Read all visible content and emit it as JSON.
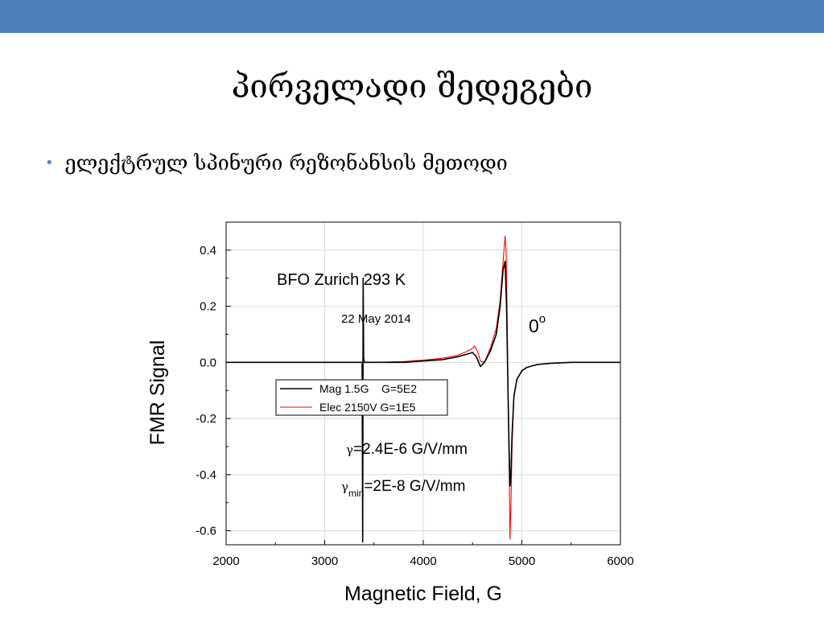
{
  "slide": {
    "title": "პირველადი შედეგები",
    "bullet": "ელექტრულ სპინური რეზონანსის მეთოდი"
  },
  "colors": {
    "accent": "#4f81bd",
    "series_mag": "#000000",
    "series_elec": "#ff0000"
  },
  "chart_data": {
    "type": "line",
    "xlabel": "Magnetic Field, G",
    "ylabel": "FMR Signal",
    "xlim": [
      2000,
      6000
    ],
    "ylim": [
      -0.65,
      0.5
    ],
    "xticks": [
      2000,
      3000,
      4000,
      5000,
      6000
    ],
    "yticks": [
      0.4,
      0.2,
      0.0,
      -0.2,
      -0.4,
      -0.6
    ],
    "xtick_labels": [
      "2000",
      "3000",
      "4000",
      "5000",
      "6000"
    ],
    "ytick_labels": [
      "0.4",
      "0.2",
      "0.0",
      "-0.2",
      "-0.4",
      "-0.6"
    ],
    "grid": true,
    "legend_position": "center",
    "annotations": {
      "sample": "BFO Zurich 293 K",
      "date": "22 May 2014",
      "angle": "0",
      "angle_sup": "o",
      "gamma_sym": "γ",
      "gamma_text": "=2.4E-6 G/V/mm",
      "gamma_min_sym": "γ",
      "gamma_min_sub": "min",
      "gamma_min_text": "=2E-8 G/V/mm"
    },
    "series": [
      {
        "name": "Mag 1.5G    G=5E2",
        "color": "#000000",
        "x": [
          2000,
          2500,
          3000,
          3380,
          3385,
          3390,
          3395,
          3400,
          3500,
          3800,
          4000,
          4200,
          4350,
          4450,
          4500,
          4540,
          4580,
          4620,
          4680,
          4740,
          4780,
          4810,
          4830,
          4845,
          4860,
          4870,
          4880,
          4890,
          4900,
          4920,
          4950,
          5000,
          5050,
          5150,
          5300,
          5500,
          5800,
          6000
        ],
        "y": [
          0.0,
          0.0,
          0.0,
          0.0,
          -0.64,
          0.3,
          0.02,
          0.0,
          0.0,
          0.0,
          0.005,
          0.01,
          0.02,
          0.03,
          0.035,
          0.02,
          -0.015,
          0.0,
          0.04,
          0.1,
          0.2,
          0.33,
          0.36,
          0.2,
          -0.1,
          -0.3,
          -0.44,
          -0.4,
          -0.26,
          -0.12,
          -0.06,
          -0.03,
          -0.018,
          -0.008,
          -0.003,
          0.0,
          0.0,
          0.0
        ]
      },
      {
        "name": "Elec 2150V G=1E5",
        "color": "#ff0000",
        "x": [
          2000,
          2500,
          3000,
          3380,
          3400,
          3500,
          3800,
          4000,
          4200,
          4350,
          4450,
          4500,
          4520,
          4550,
          4580,
          4620,
          4680,
          4740,
          4780,
          4810,
          4830,
          4840,
          4850,
          4860,
          4870,
          4880,
          4890,
          4900,
          4920,
          4950,
          5000,
          5050,
          5150,
          5300,
          5500,
          5800,
          6000
        ],
        "y": [
          0.0,
          0.0,
          0.0,
          0.0,
          0.0,
          0.0,
          0.003,
          0.008,
          0.015,
          0.025,
          0.04,
          0.05,
          0.058,
          0.04,
          0.005,
          0.0,
          0.05,
          0.12,
          0.22,
          0.36,
          0.45,
          0.4,
          0.2,
          -0.1,
          -0.35,
          -0.63,
          -0.5,
          -0.3,
          -0.12,
          -0.06,
          -0.03,
          -0.018,
          -0.008,
          -0.003,
          0.0,
          0.0,
          0.0
        ]
      }
    ]
  }
}
